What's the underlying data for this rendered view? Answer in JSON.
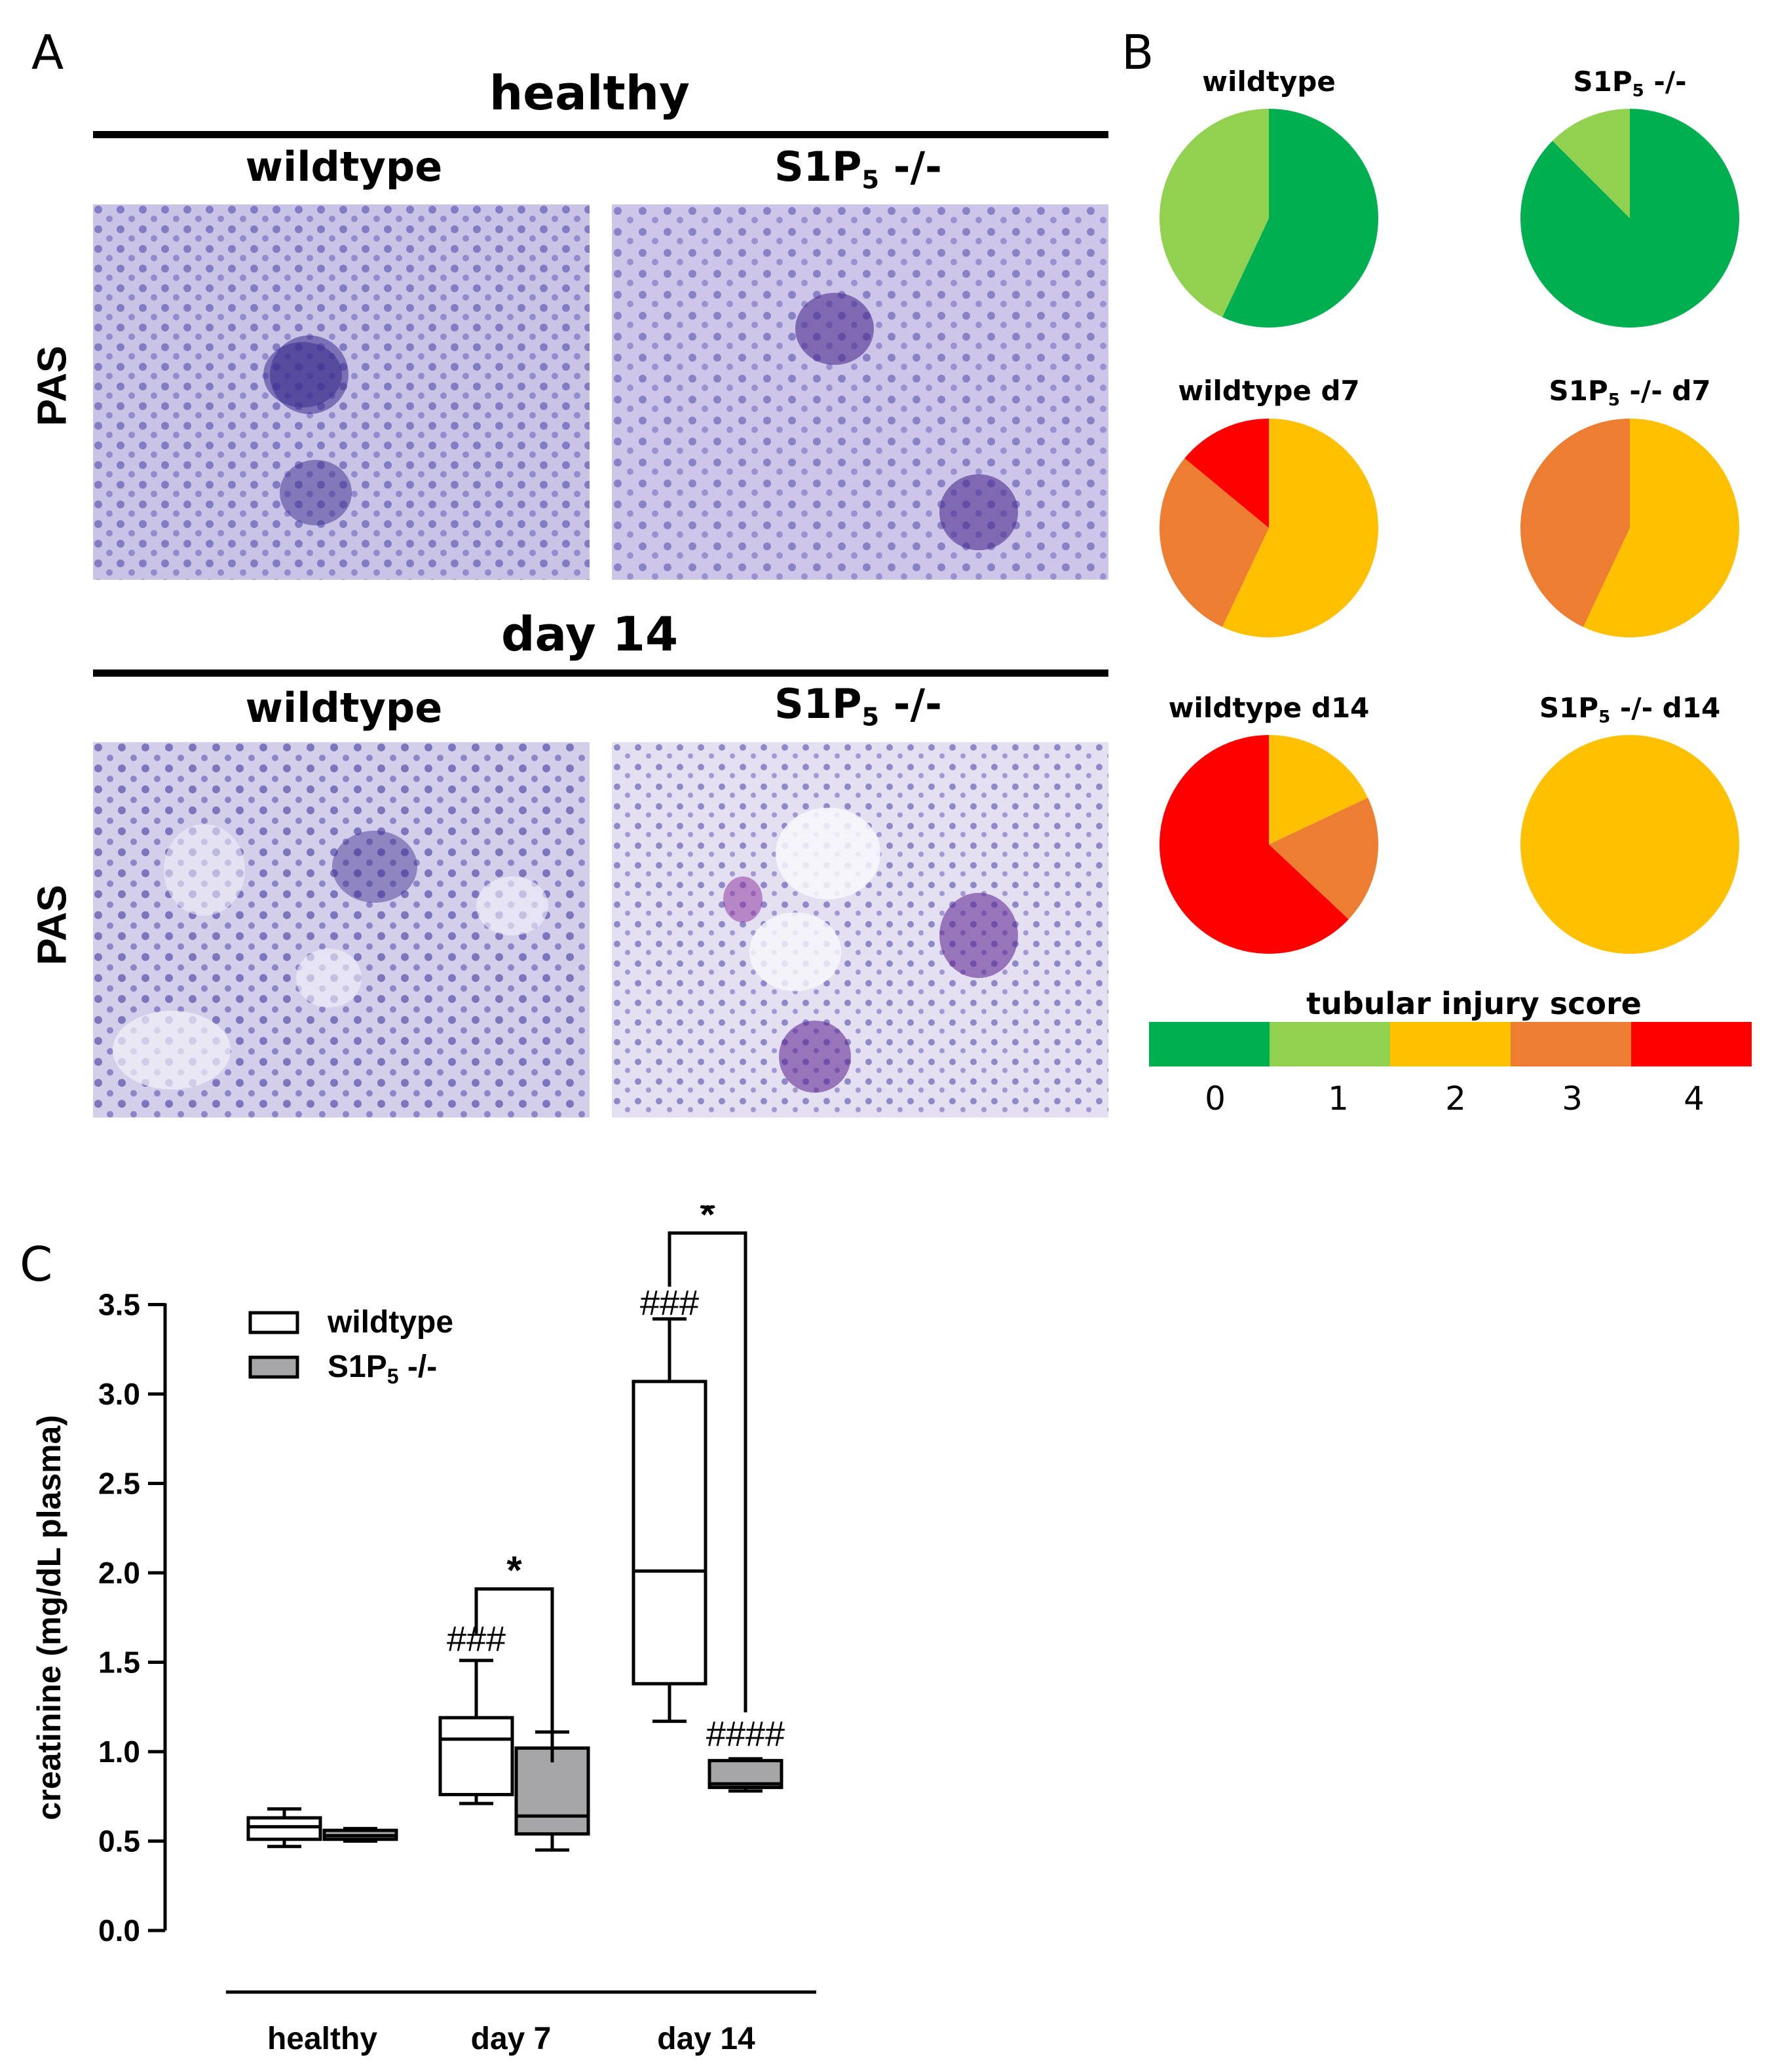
{
  "panelA": {
    "label": "A",
    "section_top": "healthy",
    "section_bottom": "day 14",
    "col_left": "wildtype",
    "col_right_main": "S1P",
    "col_right_sub": "5",
    "col_right_tail": " -/-",
    "row_label": "PAS"
  },
  "panelB": {
    "label": "B",
    "colorbar_title": "tubular injury score",
    "score_colors": [
      "#00B050",
      "#92D050",
      "#FFC000",
      "#ED7D31",
      "#FF0000"
    ],
    "pies": [
      {
        "title_main": "wildtype",
        "title_sub": "",
        "title_tail": "",
        "slices": [
          {
            "score": 0,
            "fraction": 0.57
          },
          {
            "score": 1,
            "fraction": 0.43
          }
        ]
      },
      {
        "title_main": "S1P",
        "title_sub": "5",
        "title_tail": " -/-",
        "slices": [
          {
            "score": 0,
            "fraction": 0.875
          },
          {
            "score": 1,
            "fraction": 0.125
          }
        ]
      },
      {
        "title_main": "wildtype d7",
        "title_sub": "",
        "title_tail": "",
        "slices": [
          {
            "score": 2,
            "fraction": 0.57
          },
          {
            "score": 3,
            "fraction": 0.29
          },
          {
            "score": 4,
            "fraction": 0.14
          }
        ]
      },
      {
        "title_main": "S1P",
        "title_sub": "5",
        "title_tail": " -/- d7",
        "slices": [
          {
            "score": 2,
            "fraction": 0.57
          },
          {
            "score": 3,
            "fraction": 0.43
          }
        ]
      },
      {
        "title_main": "wildtype d14",
        "title_sub": "",
        "title_tail": "",
        "slices": [
          {
            "score": 2,
            "fraction": 0.18
          },
          {
            "score": 3,
            "fraction": 0.19
          },
          {
            "score": 4,
            "fraction": 0.63
          }
        ]
      },
      {
        "title_main": "S1P",
        "title_sub": "5",
        "title_tail": " -/- d14",
        "slices": [
          {
            "score": 2,
            "fraction": 1.0
          }
        ]
      }
    ]
  },
  "panelC": {
    "label": "C"
  },
  "chart_data": {
    "type": "box",
    "ylabel": "creatinine (mg/dL plasma)",
    "ylim": [
      0,
      3.5
    ],
    "yticks": [
      "0.0",
      "0.5",
      "1.0",
      "1.5",
      "2.0",
      "2.5",
      "3.0",
      "3.5"
    ],
    "categories": [
      "healthy",
      "day 7",
      "day 14"
    ],
    "legend": {
      "placement": "top-left"
    },
    "series": [
      {
        "name": "wildtype",
        "legend_main": "wildtype",
        "legend_sub": "",
        "legend_tail": "",
        "fill": "#ffffff",
        "boxes": [
          {
            "min": 0.47,
            "q1": 0.51,
            "median": 0.58,
            "q3": 0.63,
            "max": 0.68
          },
          {
            "min": 0.71,
            "q1": 0.76,
            "median": 1.07,
            "q3": 1.19,
            "max": 1.51
          },
          {
            "min": 1.17,
            "q1": 1.38,
            "median": 2.01,
            "q3": 3.07,
            "max": 3.42
          }
        ]
      },
      {
        "name": "S1P5 -/-",
        "legend_main": "S1P",
        "legend_sub": "5",
        "legend_tail": " -/-",
        "fill": "#A6A6A8",
        "boxes": [
          {
            "min": 0.5,
            "q1": 0.51,
            "median": 0.53,
            "q3": 0.56,
            "max": 0.57
          },
          {
            "min": 0.45,
            "q1": 0.54,
            "median": 0.64,
            "q3": 1.02,
            "max": 1.11
          },
          {
            "min": 0.78,
            "q1": 0.8,
            "median": 0.82,
            "q3": 0.95,
            "max": 0.96
          }
        ]
      }
    ],
    "annotations": [
      {
        "text": "###",
        "category": "day 7",
        "series": "wildtype",
        "y": 1.6
      },
      {
        "text": "###",
        "category": "day 14",
        "series": "wildtype",
        "y": 3.48
      },
      {
        "text": "####",
        "category": "day 14",
        "series": "S1P5 -/-",
        "y": 1.07
      },
      {
        "text": "*",
        "category": "day 7",
        "bracket_y": 1.91,
        "left_bottom": 1.66,
        "right_bottom": 0.94
      },
      {
        "text": "*",
        "category": "day 14",
        "bracket_y": 3.9,
        "left_bottom": 3.6,
        "right_bottom": 1.22
      }
    ]
  }
}
